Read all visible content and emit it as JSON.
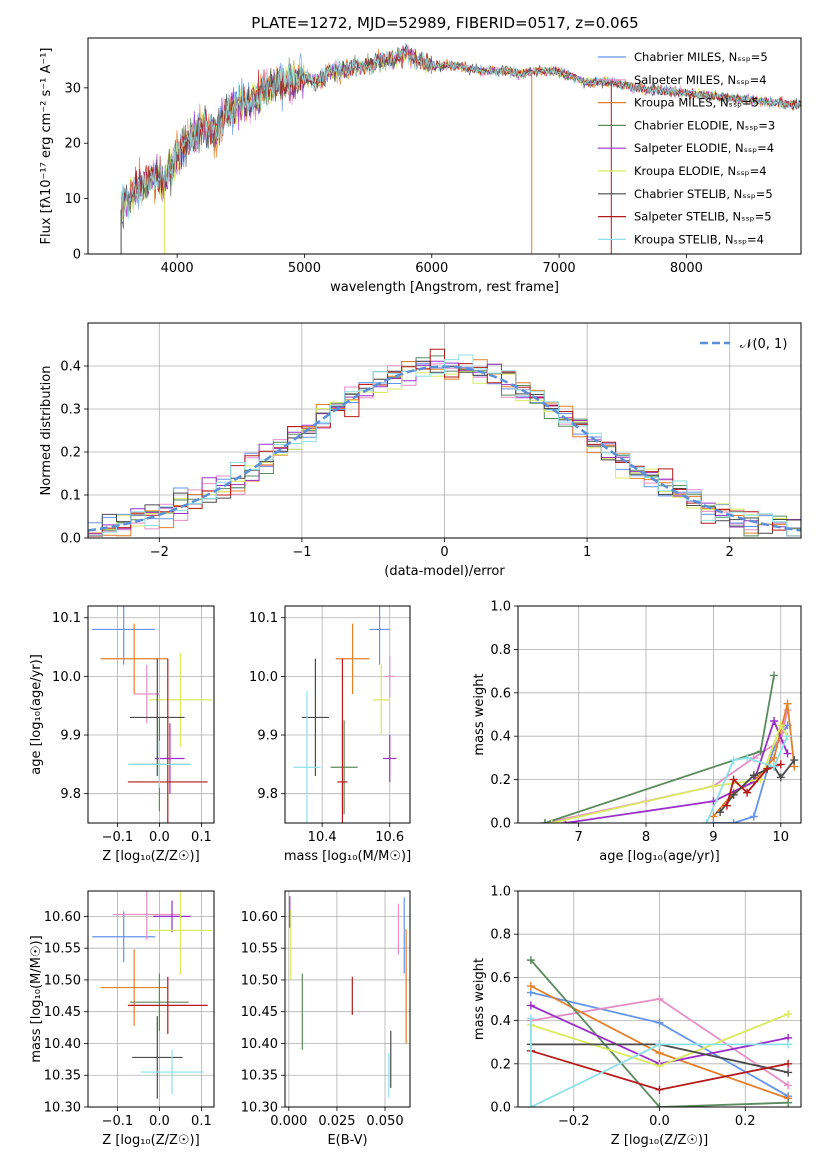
{
  "figure": {
    "title": "PLATE=1272, MJD=52989, FIBERID=0517, z=0.065"
  },
  "chart_data": [
    {
      "id": "spectrum",
      "type": "line",
      "xlabel": "wavelength [Angstrom, rest frame]",
      "ylabel": "Flux [fλ10⁻¹⁷ erg cm⁻² s⁻¹ A⁻¹]",
      "xlim": [
        3300,
        8900
      ],
      "ylim": [
        0,
        39
      ],
      "xticks": [
        4000,
        5000,
        6000,
        7000,
        8000
      ],
      "yticks": [
        0,
        10,
        20,
        30
      ],
      "grid": false,
      "legend_position": "top-right",
      "series": [
        {
          "name": "Chabrier MILES, Nₛₛₚ=5",
          "color": "#6495ed"
        },
        {
          "name": "Salpeter MILES, Nₛₛₚ=4",
          "color": "#e58fc6"
        },
        {
          "name": "Kroupa MILES, Nₛₛₚ=5",
          "color": "#e47f2a"
        },
        {
          "name": "Chabrier ELODIE, Nₛₛₚ=3",
          "color": "#5b8a5e"
        },
        {
          "name": "Salpeter ELODIE, Nₛₛₚ=4",
          "color": "#9b30c8"
        },
        {
          "name": "Kroupa ELODIE, Nₛₛₚ=4",
          "color": "#d9ea5f"
        },
        {
          "name": "Chabrier STELIB, Nₛₛₚ=5",
          "color": "#4a4a4a"
        },
        {
          "name": "Salpeter STELIB, Nₛₛₚ=5",
          "color": "#b51a1a"
        },
        {
          "name": "Kroupa STELIB, Nₛₛₚ=4",
          "color": "#8ee0e8"
        }
      ],
      "envelope": {
        "x": [
          3560,
          3600,
          3700,
          3800,
          3900,
          4000,
          4100,
          4200,
          4300,
          4400,
          4500,
          4600,
          4700,
          4800,
          4900,
          5000,
          5100,
          5200,
          5300,
          5400,
          5500,
          5600,
          5700,
          5800,
          5900,
          6000,
          6100,
          6200,
          6300,
          6400,
          6500,
          6600,
          6700,
          6800,
          6900,
          7000,
          7100,
          7200,
          7300,
          7400,
          7500,
          7600,
          7800,
          8000,
          8200,
          8400,
          8600,
          8800,
          8900
        ],
        "y": [
          8,
          10,
          12,
          14,
          13,
          18,
          21,
          23,
          22,
          26,
          27,
          28,
          30,
          31,
          31,
          32,
          31,
          33,
          33,
          34,
          34,
          35,
          35,
          36,
          35,
          34,
          34,
          34,
          33.5,
          33,
          33,
          33,
          32.5,
          33,
          33,
          33,
          32,
          31,
          31,
          31,
          30.5,
          30,
          29.5,
          29,
          28.5,
          28,
          27.5,
          27,
          27
        ]
      }
    },
    {
      "id": "residuals",
      "type": "histogram",
      "xlabel": "(data-model)/error",
      "ylabel": "Normed distribution",
      "xlim": [
        -2.5,
        2.5
      ],
      "ylim": [
        0,
        0.5
      ],
      "xticks": [
        -2,
        -1,
        0,
        1,
        2
      ],
      "yticks": [
        0.0,
        0.1,
        0.2,
        0.3,
        0.4
      ],
      "grid": true,
      "legend": "𝒩(0, 1)",
      "legend_position": "top-right"
    },
    {
      "id": "age-vs-Z",
      "type": "errorbar",
      "xlabel": "Z [log₁₀(Z/Z☉)]",
      "ylabel": "age  [log₁₀(age/yr)]",
      "xlim": [
        -0.17,
        0.13
      ],
      "ylim": [
        9.75,
        10.12
      ],
      "xticks": [
        -0.1,
        0.0,
        0.1
      ],
      "yticks": [
        9.8,
        9.9,
        10.0,
        10.1
      ],
      "grid": true,
      "points": [
        {
          "x": -0.085,
          "xerr": 0.075,
          "y": 10.08,
          "yerr": 0.06,
          "color": "#6495ed"
        },
        {
          "x": -0.03,
          "xerr": 0.03,
          "y": 9.97,
          "yerr": 0.05,
          "color": "#e58fc6"
        },
        {
          "x": -0.06,
          "xerr": 0.08,
          "y": 10.03,
          "yerr": 0.06,
          "color": "#e47f2a"
        },
        {
          "x": 0.0,
          "xerr": 0.07,
          "y": 9.85,
          "yerr": 0.08,
          "color": "#5b8a5e"
        },
        {
          "x": 0.025,
          "xerr": 0.035,
          "y": 9.86,
          "yerr": 0.06,
          "color": "#9b30c8"
        },
        {
          "x": 0.05,
          "xerr": 0.075,
          "y": 9.96,
          "yerr": 0.08,
          "color": "#d9ea5f"
        },
        {
          "x": -0.005,
          "xerr": 0.065,
          "y": 9.93,
          "yerr": 0.1,
          "color": "#4a4a4a"
        },
        {
          "x": 0.02,
          "xerr": 0.095,
          "y": 9.82,
          "yerr": 0.21,
          "color": "#b51a1a"
        },
        {
          "x": 0.0,
          "xerr": 0.075,
          "y": 9.85,
          "yerr": 0.04,
          "color": "#8ee0e8"
        }
      ]
    },
    {
      "id": "age-vs-mass",
      "type": "errorbar",
      "xlabel": "mass [log₁₀(M/M☉)]",
      "ylabel": "",
      "xlim": [
        10.29,
        10.66
      ],
      "ylim": [
        9.75,
        10.12
      ],
      "xticks": [
        10.4,
        10.6
      ],
      "yticks": [
        9.8,
        9.9,
        10.0,
        10.1
      ],
      "grid": true,
      "points": [
        {
          "x": 10.57,
          "xerr": 0.03,
          "y": 10.08,
          "yerr": 0.06,
          "color": "#6495ed"
        },
        {
          "x": 10.6,
          "xerr": 0.015,
          "y": 10.0,
          "yerr": 0.035,
          "color": "#e58fc6"
        },
        {
          "x": 10.49,
          "xerr": 0.05,
          "y": 10.03,
          "yerr": 0.06,
          "color": "#e47f2a"
        },
        {
          "x": 10.465,
          "xerr": 0.04,
          "y": 9.845,
          "yerr": 0.08,
          "color": "#5b8a5e"
        },
        {
          "x": 10.6,
          "xerr": 0.02,
          "y": 9.86,
          "yerr": 0.04,
          "color": "#9b30c8"
        },
        {
          "x": 10.575,
          "xerr": 0.025,
          "y": 9.96,
          "yerr": 0.06,
          "color": "#d9ea5f"
        },
        {
          "x": 10.38,
          "xerr": 0.04,
          "y": 9.93,
          "yerr": 0.1,
          "color": "#4a4a4a"
        },
        {
          "x": 10.46,
          "xerr": 0.015,
          "y": 9.82,
          "yerr": 0.21,
          "color": "#b51a1a"
        },
        {
          "x": 10.355,
          "xerr": 0.04,
          "y": 9.845,
          "yerr": 0.13,
          "color": "#8ee0e8"
        }
      ]
    },
    {
      "id": "sfh-age",
      "type": "line",
      "xlabel": "age  [log₁₀(age/yr)]",
      "ylabel": "mass weight",
      "xlim": [
        6.1,
        10.3
      ],
      "ylim": [
        0,
        1.0
      ],
      "xticks": [
        7,
        8,
        9,
        10
      ],
      "yticks": [
        0.0,
        0.2,
        0.4,
        0.6,
        0.8,
        1.0
      ],
      "grid": true,
      "series": [
        {
          "color": "#6495ed",
          "x": [
            9.0,
            9.3,
            9.6,
            9.9,
            10.1
          ],
          "y": [
            0.0,
            0.0,
            0.03,
            0.35,
            0.45
          ]
        },
        {
          "color": "#e58fc6",
          "x": [
            6.5,
            8.0,
            9.0,
            9.6,
            10.0,
            10.1
          ],
          "y": [
            0.0,
            0.1,
            0.17,
            0.3,
            0.38,
            0.52
          ]
        },
        {
          "color": "#e47f2a",
          "x": [
            9.0,
            9.3,
            9.6,
            9.9,
            10.1,
            10.2
          ],
          "y": [
            0.03,
            0.14,
            0.19,
            0.3,
            0.55,
            0.26
          ]
        },
        {
          "color": "#5b8a5e",
          "x": [
            6.5,
            9.7,
            9.9
          ],
          "y": [
            0.0,
            0.33,
            0.68
          ]
        },
        {
          "color": "#9b30c8",
          "x": [
            6.8,
            9.0,
            9.6,
            9.9,
            10.1
          ],
          "y": [
            0.0,
            0.1,
            0.19,
            0.47,
            0.32
          ]
        },
        {
          "color": "#d9ea5f",
          "x": [
            6.6,
            9.0,
            9.7,
            10.0,
            10.1
          ],
          "y": [
            0.0,
            0.17,
            0.2,
            0.45,
            0.4
          ]
        },
        {
          "color": "#4a4a4a",
          "x": [
            9.1,
            9.3,
            9.6,
            9.9,
            10.0,
            10.2
          ],
          "y": [
            0.05,
            0.13,
            0.22,
            0.26,
            0.21,
            0.29
          ]
        },
        {
          "color": "#b51a1a",
          "x": [
            9.2,
            9.3,
            9.5,
            9.8,
            10.0
          ],
          "y": [
            0.08,
            0.2,
            0.14,
            0.25,
            0.27
          ]
        },
        {
          "color": "#8ee0e8",
          "x": [
            8.9,
            9.3,
            9.5,
            9.9,
            10.1
          ],
          "y": [
            0.0,
            0.29,
            0.3,
            0.26,
            0.4
          ]
        }
      ]
    },
    {
      "id": "mass-vs-Z",
      "type": "errorbar",
      "xlabel": "Z [log₁₀(Z/Z☉)]",
      "ylabel": "mass [log₁₀(M/M☉)]",
      "xlim": [
        -0.17,
        0.13
      ],
      "ylim": [
        10.3,
        10.64
      ],
      "xticks": [
        -0.1,
        0.0,
        0.1
      ],
      "yticks": [
        10.3,
        10.35,
        10.4,
        10.45,
        10.5,
        10.55,
        10.6
      ],
      "grid": true,
      "points": [
        {
          "x": -0.085,
          "xerr": 0.075,
          "y": 10.568,
          "yerr": 0.04,
          "color": "#6495ed"
        },
        {
          "x": -0.03,
          "xerr": 0.08,
          "y": 10.603,
          "yerr": 0.04,
          "color": "#e58fc6"
        },
        {
          "x": -0.06,
          "xerr": 0.08,
          "y": 10.488,
          "yerr": 0.06,
          "color": "#e47f2a"
        },
        {
          "x": 0.0,
          "xerr": 0.07,
          "y": 10.465,
          "yerr": 0.045,
          "color": "#5b8a5e"
        },
        {
          "x": 0.03,
          "xerr": 0.045,
          "y": 10.6,
          "yerr": 0.025,
          "color": "#9b30c8"
        },
        {
          "x": 0.05,
          "xerr": 0.075,
          "y": 10.578,
          "yerr": 0.07,
          "color": "#d9ea5f"
        },
        {
          "x": -0.005,
          "xerr": 0.06,
          "y": 10.378,
          "yerr": 0.065,
          "color": "#4a4a4a"
        },
        {
          "x": 0.02,
          "xerr": 0.095,
          "y": 10.46,
          "yerr": 0.045,
          "color": "#b51a1a"
        },
        {
          "x": 0.03,
          "xerr": 0.075,
          "y": 10.355,
          "yerr": 0.035,
          "color": "#8ee0e8"
        }
      ]
    },
    {
      "id": "mass-vs-EBV",
      "type": "errorbar",
      "xlabel": "E(B-V)",
      "ylabel": "",
      "xlim": [
        -0.002,
        0.063
      ],
      "ylim": [
        10.3,
        10.64
      ],
      "xticks": [
        0.0,
        0.025,
        0.05
      ],
      "xticklabels": [
        "0.000",
        "0.025",
        "0.050"
      ],
      "yticks": [
        10.3,
        10.35,
        10.4,
        10.45,
        10.5,
        10.55,
        10.6
      ],
      "grid": true,
      "points": [
        {
          "x": 0.06,
          "xerr": 0,
          "y": 10.57,
          "yerr": 0.06,
          "color": "#6495ed"
        },
        {
          "x": 0.057,
          "xerr": 0,
          "y": 10.58,
          "yerr": 0.04,
          "color": "#e58fc6"
        },
        {
          "x": 0.061,
          "xerr": 0,
          "y": 10.49,
          "yerr": 0.09,
          "color": "#e47f2a"
        },
        {
          "x": 0.007,
          "xerr": 0,
          "y": 10.45,
          "yerr": 0.06,
          "color": "#5b8a5e"
        },
        {
          "x": 0.0005,
          "xerr": 0,
          "y": 10.607,
          "yerr": 0.025,
          "color": "#9b30c8"
        },
        {
          "x": 0.001,
          "xerr": 0,
          "y": 10.555,
          "yerr": 0.055,
          "color": "#d9ea5f"
        },
        {
          "x": 0.053,
          "xerr": 0,
          "y": 10.375,
          "yerr": 0.045,
          "color": "#4a4a4a"
        },
        {
          "x": 0.033,
          "xerr": 0,
          "y": 10.475,
          "yerr": 0.03,
          "color": "#b51a1a"
        },
        {
          "x": 0.052,
          "xerr": 0,
          "y": 10.35,
          "yerr": 0.035,
          "color": "#8ee0e8"
        }
      ]
    },
    {
      "id": "sfh-Z",
      "type": "line",
      "xlabel": "Z [log₁₀(Z/Z☉)]",
      "ylabel": "mass weight",
      "xlim": [
        -0.33,
        0.33
      ],
      "ylim": [
        0,
        1.0
      ],
      "xticks": [
        -0.2,
        0.0,
        0.2
      ],
      "yticks": [
        0.0,
        0.2,
        0.4,
        0.6,
        0.8,
        1.0
      ],
      "grid": true,
      "series": [
        {
          "color": "#6495ed",
          "x": [
            -0.3,
            0.0,
            0.3
          ],
          "y": [
            0.53,
            0.39,
            0.05
          ]
        },
        {
          "color": "#e58fc6",
          "x": [
            -0.3,
            0.0,
            0.3
          ],
          "y": [
            0.4,
            0.5,
            0.1
          ]
        },
        {
          "color": "#e47f2a",
          "x": [
            -0.3,
            0.0,
            0.3
          ],
          "y": [
            0.56,
            0.25,
            0.04
          ]
        },
        {
          "color": "#5b8a5e",
          "x": [
            -0.3,
            0.0,
            0.3
          ],
          "y": [
            0.68,
            0.0,
            0.02
          ]
        },
        {
          "color": "#9b30c8",
          "x": [
            -0.3,
            0.0,
            0.3
          ],
          "y": [
            0.47,
            0.2,
            0.32
          ]
        },
        {
          "color": "#d9ea5f",
          "x": [
            -0.3,
            0.0,
            0.3
          ],
          "y": [
            0.38,
            0.19,
            0.43
          ]
        },
        {
          "color": "#4a4a4a",
          "x": [
            -0.3,
            0.0,
            0.3
          ],
          "y": [
            0.29,
            0.29,
            0.16
          ]
        },
        {
          "color": "#b51a1a",
          "x": [
            -0.3,
            0.0,
            0.3
          ],
          "y": [
            0.26,
            0.08,
            0.2
          ]
        },
        {
          "color": "#8ee0e8",
          "x": [
            -0.3,
            -0.3,
            0.0,
            0.3
          ],
          "y": [
            0.41,
            0.0,
            0.29,
            0.29
          ]
        }
      ]
    }
  ]
}
